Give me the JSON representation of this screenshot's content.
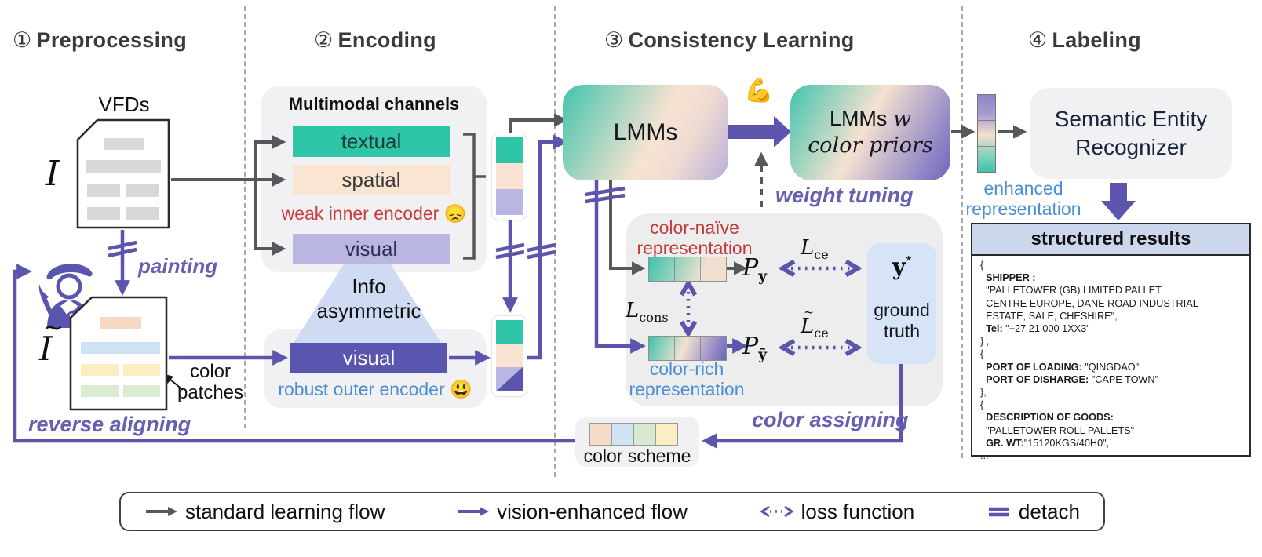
{
  "sections": [
    {
      "num": "①",
      "title": "Preprocessing"
    },
    {
      "num": "②",
      "title": "Encoding"
    },
    {
      "num": "③",
      "title": "Consistency Learning"
    },
    {
      "num": "④",
      "title": "Labeling"
    }
  ],
  "preprocessing": {
    "vfds_label": "VFDs",
    "doc_symbol": "I",
    "tilde": "~",
    "painting": "painting",
    "color_patches_line1": "color",
    "color_patches_line2": "patches",
    "reverse_aligning": "reverse aligning"
  },
  "encoding": {
    "panel_title": "Multimodal channels",
    "textual": "textual",
    "spatial": "spatial",
    "visual": "visual",
    "weak_label": "weak inner encoder",
    "weak_emoji": "😞",
    "info_line1": "Info",
    "info_line2": "asymmetric",
    "outer_visual": "visual",
    "robust_label": "robust outer encoder",
    "robust_emoji": "😃"
  },
  "consistency": {
    "lmms": "LMMs",
    "muscle_emoji": "💪",
    "lmmsw_line1_a": "LMMs",
    "lmmsw_line1_b": "w",
    "lmmsw_line2": "color priors",
    "weight_tuning": "weight tuning",
    "naive_line1": "color-naïve",
    "naive_line2": "representation",
    "rich_line1": "color-rich",
    "rich_line2": "representation",
    "p": "P",
    "y": "y",
    "y_tilde": "ỹ",
    "l": "L",
    "ce": "ce",
    "cons": "cons",
    "tilde": "~",
    "gt": "y",
    "star": "*",
    "ground": "ground",
    "truth": "truth",
    "color_assigning": "color assigning",
    "color_scheme": "color scheme"
  },
  "labeling": {
    "enhanced_line1": "enhanced",
    "enhanced_line2": "representation",
    "ser_line1": "Semantic Entity",
    "ser_line2": "Recognizer",
    "structured_results": {
      "title": "structured results",
      "lines": [
        [
          {
            "t": "{"
          }
        ],
        [
          {
            "t": "  "
          },
          {
            "t": "SHIPPER :",
            "b": true
          }
        ],
        [
          {
            "t": "  \"PALLETOWER (GB) LIMITED PALLET"
          }
        ],
        [
          {
            "t": "  CENTRE EUROPE, DANE ROAD INDUSTRIAL"
          }
        ],
        [
          {
            "t": "  ESTATE, SALE, CHESHIRE\","
          }
        ],
        [
          {
            "t": "  "
          },
          {
            "t": "Tel:",
            "b": true
          },
          {
            "t": " \"+27 21 000 1XX3\""
          }
        ],
        [
          {
            "t": "} ,"
          }
        ],
        [
          {
            "t": "{"
          }
        ],
        [
          {
            "t": "  "
          },
          {
            "t": "PORT OF LOADING:",
            "b": true
          },
          {
            "t": " \"QINGDAO\" ,"
          }
        ],
        [
          {
            "t": "  "
          },
          {
            "t": "PORT OF DISHARGE:",
            "b": true
          },
          {
            "t": " \"CAPE TOWN\""
          }
        ],
        [
          {
            "t": "},"
          }
        ],
        [
          {
            "t": "{"
          }
        ],
        [
          {
            "t": "  "
          },
          {
            "t": "DESCRIPTION OF GOODS:",
            "b": true
          }
        ],
        [
          {
            "t": "  \"PALLETOWER ROLL PALLETS\""
          }
        ],
        [
          {
            "t": "  "
          },
          {
            "t": "GR. WT:",
            "b": true
          },
          {
            "t": "\"15120KGS/40H0\","
          }
        ],
        [
          {
            "t": "..."
          }
        ]
      ]
    }
  },
  "legend": {
    "items": [
      {
        "label": "standard learning flow"
      },
      {
        "label": "vision-enhanced flow"
      },
      {
        "label": "loss function"
      },
      {
        "label": "detach"
      }
    ]
  },
  "colors": {
    "flow_purple": "#5b55ae",
    "flow_gray": "#57585b",
    "teal": "#2fc6a8",
    "peach": "#fae3d2",
    "lavender": "#b9b6e2",
    "deep_purple": "#5a55ae",
    "weak_red": "#cb3b3b",
    "outer_blue": "#4a8fd3",
    "panel_gray": "#f1f0f2",
    "triangle_blue": "#cfdbf3",
    "ground_truth_blue": "#d7e3f6",
    "results_header_blue": "#ccd7ee",
    "label_purple": "#6660b2",
    "doc_bar_gray": "#d8d8d8",
    "doc2_bars": [
      "#f5d9c4",
      "#cfe2f4",
      "#fbeec0",
      "#dcebd3"
    ],
    "color_scheme_swatches": [
      "#f5dcc8",
      "#cfe3f5",
      "#d9e8d2",
      "#fbeec2"
    ]
  }
}
